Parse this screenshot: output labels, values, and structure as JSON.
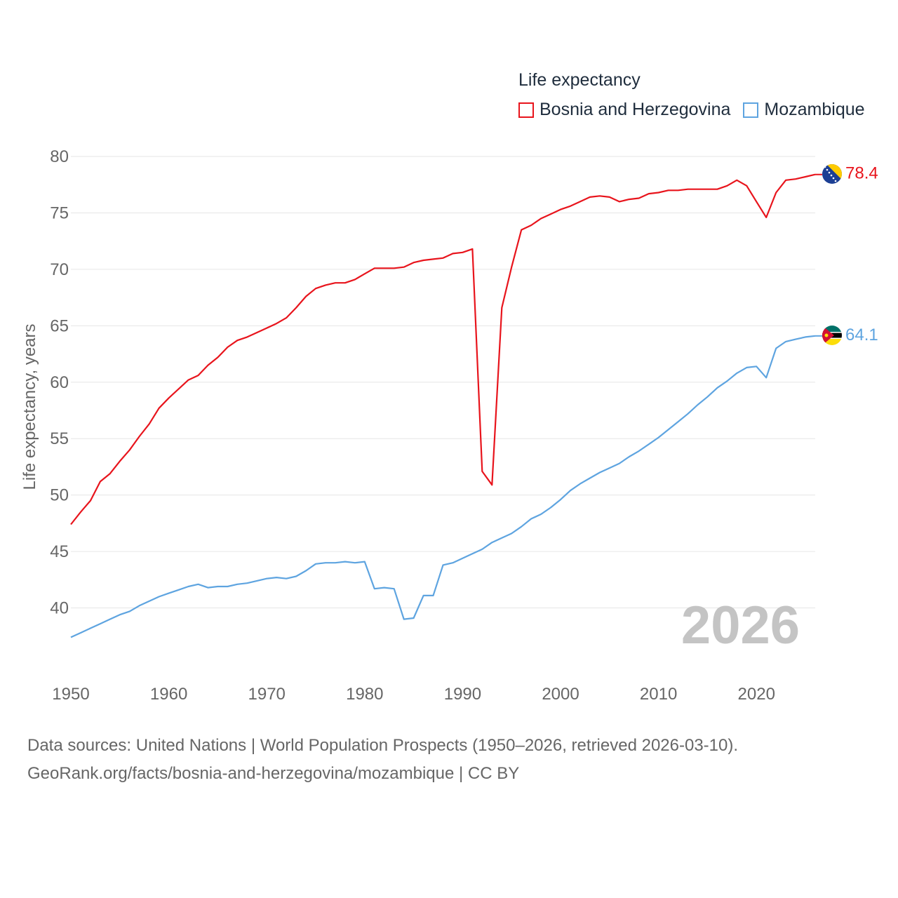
{
  "legend": {
    "title": "Life expectancy",
    "items": [
      {
        "name": "Bosnia and Herzegovina",
        "color": "#e8141c"
      },
      {
        "name": "Mozambique",
        "color": "#5ea4e0"
      }
    ]
  },
  "year_label": "2026",
  "sources": {
    "line1": "Data sources: United Nations | World Population Prospects (1950–2026, retrieved 2026-03-10).",
    "line2": "GeoRank.org/facts/bosnia-and-herzegovina/mozambique | CC BY"
  },
  "chart_data": {
    "type": "line",
    "title": "Life expectancy",
    "xlabel": "",
    "ylabel": "Life expectancy, years",
    "xlim": [
      1950,
      2026
    ],
    "ylim": [
      35,
      80
    ],
    "x_ticks": [
      1950,
      1960,
      1970,
      1980,
      1990,
      2000,
      2010,
      2020
    ],
    "y_ticks": [
      40,
      45,
      50,
      55,
      60,
      65,
      70,
      75,
      80
    ],
    "grid": true,
    "legend_position": "top-right",
    "x": [
      1950,
      1951,
      1952,
      1953,
      1954,
      1955,
      1956,
      1957,
      1958,
      1959,
      1960,
      1961,
      1962,
      1963,
      1964,
      1965,
      1966,
      1967,
      1968,
      1969,
      1970,
      1971,
      1972,
      1973,
      1974,
      1975,
      1976,
      1977,
      1978,
      1979,
      1980,
      1981,
      1982,
      1983,
      1984,
      1985,
      1986,
      1987,
      1988,
      1989,
      1990,
      1991,
      1992,
      1993,
      1994,
      1995,
      1996,
      1997,
      1998,
      1999,
      2000,
      2001,
      2002,
      2003,
      2004,
      2005,
      2006,
      2007,
      2008,
      2009,
      2010,
      2011,
      2012,
      2013,
      2014,
      2015,
      2016,
      2017,
      2018,
      2019,
      2020,
      2021,
      2022,
      2023,
      2024,
      2025,
      2026
    ],
    "series": [
      {
        "name": "Bosnia and Herzegovina",
        "color": "#e8141c",
        "end_label": "78.4",
        "values": [
          47.4,
          48.5,
          49.5,
          51.2,
          51.9,
          53.0,
          54.0,
          55.2,
          56.3,
          57.7,
          58.6,
          59.4,
          60.2,
          60.6,
          61.5,
          62.2,
          63.1,
          63.7,
          64.0,
          64.4,
          64.8,
          65.2,
          65.7,
          66.6,
          67.6,
          68.3,
          68.6,
          68.8,
          68.8,
          69.1,
          69.6,
          70.1,
          70.1,
          70.1,
          70.2,
          70.6,
          70.8,
          70.9,
          71.0,
          71.4,
          71.5,
          71.8,
          52.1,
          50.9,
          66.6,
          70.2,
          73.5,
          73.9,
          74.5,
          74.9,
          75.3,
          75.6,
          76.0,
          76.4,
          76.5,
          76.4,
          76.0,
          76.2,
          76.3,
          76.7,
          76.8,
          77.0,
          77.0,
          77.1,
          77.1,
          77.1,
          77.1,
          77.4,
          77.9,
          77.4,
          76.0,
          74.6,
          76.8,
          77.9,
          78.0,
          78.2,
          78.4
        ]
      },
      {
        "name": "Mozambique",
        "color": "#5ea4e0",
        "end_label": "64.1",
        "values": [
          37.4,
          37.8,
          38.2,
          38.6,
          39.0,
          39.4,
          39.7,
          40.2,
          40.6,
          41.0,
          41.3,
          41.6,
          41.9,
          42.1,
          41.8,
          41.9,
          41.9,
          42.1,
          42.2,
          42.4,
          42.6,
          42.7,
          42.6,
          42.8,
          43.3,
          43.9,
          44.0,
          44.0,
          44.1,
          44.0,
          44.1,
          41.7,
          41.8,
          41.7,
          39.0,
          39.1,
          41.1,
          41.1,
          43.8,
          44.0,
          44.4,
          44.8,
          45.2,
          45.8,
          46.2,
          46.6,
          47.2,
          47.9,
          48.3,
          48.9,
          49.6,
          50.4,
          51.0,
          51.5,
          52.0,
          52.4,
          52.8,
          53.4,
          53.9,
          54.5,
          55.1,
          55.8,
          56.5,
          57.2,
          58.0,
          58.7,
          59.5,
          60.1,
          60.8,
          61.3,
          61.4,
          60.4,
          63.0,
          63.6,
          63.8,
          64.0,
          64.1
        ]
      }
    ]
  }
}
